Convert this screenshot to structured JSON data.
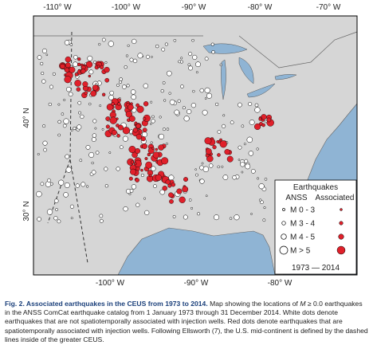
{
  "map": {
    "top_ticks": [
      "-110° W",
      "-100° W",
      "-90° W",
      "-80° W",
      "-70° W"
    ],
    "bottom_ticks": [
      "-100° W",
      "-90° W",
      "-80° W"
    ],
    "left_ticks": [
      "40° N",
      "30° N"
    ],
    "legend": {
      "title": "Earthquakes",
      "col1": "ANSS",
      "col2": "Associated",
      "rows": [
        "M 0 - 3",
        "M 3 - 4",
        "M 4 - 5",
        "M > 5"
      ],
      "period": "1973 — 2014"
    }
  },
  "caption": {
    "title": "Fig. 2. Associated earthquakes in the CEUS from 1973 to 2014.",
    "text1": "Map showing the locations of ",
    "symbol": "M",
    "text2": " ≥ 0.0 earthquakes in the ANSS ComCat earthquake catalog from 1 January 1973 through 31 December 2014. White dots denote earthquakes that are not spatiotemporally associated with injection wells. Red dots denote earthquakes that are spatiotemporally associated with injection wells. Following Ellsworth (7), the U.S. mid-continent is defined by the dashed lines inside of the greater CEUS."
  }
}
